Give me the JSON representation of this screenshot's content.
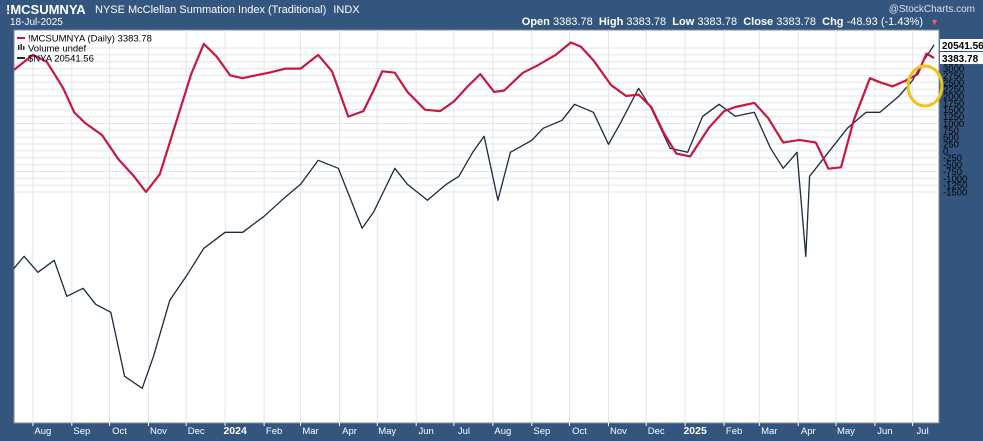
{
  "header": {
    "symbol": "!MCSUMNYA",
    "description": "NYSE McClellan Summation Index (Traditional)",
    "exchange": "INDX",
    "date": "18-Jul-2025",
    "brand": "@StockCharts.com",
    "open_label": "Open",
    "open": "3383.78",
    "high_label": "High",
    "high": "3383.78",
    "low_label": "Low",
    "low": "3383.78",
    "close_label": "Close",
    "close": "3383.78",
    "chg_label": "Chg",
    "chg": "-48.93 (-1.43%)"
  },
  "colors": {
    "summation": "#c8183f",
    "nya": "#1b2c3c",
    "highlight": "#f2c21a",
    "frame": "#33557e"
  },
  "chart_data": {
    "type": "line",
    "x_ticks": [
      "Aug",
      "Sep",
      "Oct",
      "Nov",
      "Dec",
      "2024",
      "Feb",
      "Mar",
      "Apr",
      "May",
      "Jun",
      "Jul",
      "Aug",
      "Sep",
      "Oct",
      "Nov",
      "Dec",
      "2025",
      "Feb",
      "Mar",
      "Apr",
      "May",
      "Jun",
      "Jul"
    ],
    "y_ticks": [
      "3750",
      "3500",
      "3250",
      "3000",
      "2750",
      "2500",
      "2250",
      "2000",
      "1750",
      "1500",
      "1250",
      "1000",
      "750",
      "500",
      "250",
      "0",
      "-250",
      "-500",
      "-750",
      "-1000",
      "-1250",
      "-1500"
    ],
    "ylim": [
      -1500,
      4000
    ],
    "grid": true,
    "legend_position": "top-left",
    "legend": [
      {
        "label": "!MCSUMNYA (Daily) 3383.78",
        "marker": "line",
        "color": "#c8183f"
      },
      {
        "label": "Volume undef",
        "marker": "bars",
        "color": "#333333"
      },
      {
        "label": "$NYA 20541.56",
        "marker": "line",
        "color": "#1b2c3c"
      }
    ],
    "last_labels": {
      "nya": "20541.56",
      "summation": "3383.78"
    },
    "series": [
      {
        "name": "!MCSUMNYA",
        "x": [
          "2023-07-17",
          "2023-08-01",
          "2023-08-12",
          "2023-08-25",
          "2023-09-03",
          "2023-09-12",
          "2023-09-25",
          "2023-10-08",
          "2023-10-20",
          "2023-10-30",
          "2023-11-10",
          "2023-11-22",
          "2023-12-05",
          "2023-12-15",
          "2023-12-25",
          "2024-01-05",
          "2024-01-15",
          "2024-01-25",
          "2024-02-05",
          "2024-02-18",
          "2024-03-01",
          "2024-03-15",
          "2024-03-26",
          "2024-04-08",
          "2024-04-20",
          "2024-04-28",
          "2024-05-05",
          "2024-05-15",
          "2024-05-25",
          "2024-06-08",
          "2024-06-20",
          "2024-07-01",
          "2024-07-12",
          "2024-07-22",
          "2024-08-02",
          "2024-08-10",
          "2024-08-25",
          "2024-09-05",
          "2024-09-20",
          "2024-10-02",
          "2024-10-10",
          "2024-10-20",
          "2024-11-03",
          "2024-11-15",
          "2024-11-25",
          "2024-12-05",
          "2024-12-15",
          "2024-12-25",
          "2025-01-05",
          "2025-01-20",
          "2025-02-01",
          "2025-02-10",
          "2025-02-25",
          "2025-03-08",
          "2025-03-20",
          "2025-04-02",
          "2025-04-15",
          "2025-04-25",
          "2025-05-05",
          "2025-05-15",
          "2025-05-28",
          "2025-06-05",
          "2025-06-15",
          "2025-06-25",
          "2025-07-05",
          "2025-07-12",
          "2025-07-18"
        ],
        "values": [
          2950,
          3500,
          3250,
          2300,
          1400,
          1000,
          580,
          -300,
          -900,
          -1500,
          -850,
          900,
          2800,
          3900,
          3450,
          2750,
          2650,
          2750,
          2850,
          3000,
          3000,
          3500,
          2900,
          1250,
          1450,
          2200,
          2900,
          2850,
          2150,
          1500,
          1450,
          1800,
          2350,
          2800,
          2150,
          2200,
          2850,
          3100,
          3500,
          3950,
          3800,
          3300,
          2400,
          2000,
          2050,
          1600,
          650,
          -100,
          -200,
          850,
          1450,
          1600,
          1750,
          1200,
          300,
          400,
          300,
          -650,
          -600,
          1100,
          2650,
          2500,
          2350,
          2550,
          2800,
          3550,
          3383.78
        ]
      },
      {
        "name": "$NYA",
        "x": [
          "2023-07-17",
          "2023-07-25",
          "2023-08-05",
          "2023-08-18",
          "2023-08-28",
          "2023-09-10",
          "2023-09-20",
          "2023-10-02",
          "2023-10-13",
          "2023-10-27",
          "2023-11-05",
          "2023-11-18",
          "2023-12-01",
          "2023-12-15",
          "2024-01-01",
          "2024-01-15",
          "2024-02-01",
          "2024-02-15",
          "2024-03-01",
          "2024-03-15",
          "2024-03-31",
          "2024-04-19",
          "2024-04-28",
          "2024-05-15",
          "2024-05-25",
          "2024-06-10",
          "2024-06-25",
          "2024-07-05",
          "2024-07-16",
          "2024-07-25",
          "2024-08-05",
          "2024-08-15",
          "2024-09-01",
          "2024-09-10",
          "2024-09-25",
          "2024-10-05",
          "2024-10-20",
          "2024-11-01",
          "2024-11-10",
          "2024-11-25",
          "2024-12-05",
          "2024-12-20",
          "2025-01-03",
          "2025-01-15",
          "2025-01-28",
          "2025-02-10",
          "2025-02-25",
          "2025-03-10",
          "2025-03-20",
          "2025-03-31",
          "2025-04-07",
          "2025-04-10",
          "2025-04-25",
          "2025-05-10",
          "2025-05-25",
          "2025-06-05",
          "2025-06-20",
          "2025-07-01",
          "2025-07-10",
          "2025-07-18"
        ],
        "values": [
          17750,
          17900,
          17700,
          17850,
          17400,
          17500,
          17300,
          17200,
          16400,
          16250,
          16650,
          17350,
          17650,
          18000,
          18200,
          18200,
          18400,
          18600,
          18800,
          19100,
          19000,
          18250,
          18450,
          19000,
          18800,
          18600,
          18800,
          18900,
          19200,
          19400,
          18600,
          19200,
          19350,
          19500,
          19600,
          19800,
          19700,
          19300,
          19550,
          20000,
          19750,
          19250,
          19200,
          19650,
          19800,
          19650,
          19700,
          19250,
          19000,
          19200,
          17900,
          18900,
          19200,
          19500,
          19700,
          19700,
          19900,
          20100,
          20350,
          20541.56
        ]
      }
    ]
  }
}
